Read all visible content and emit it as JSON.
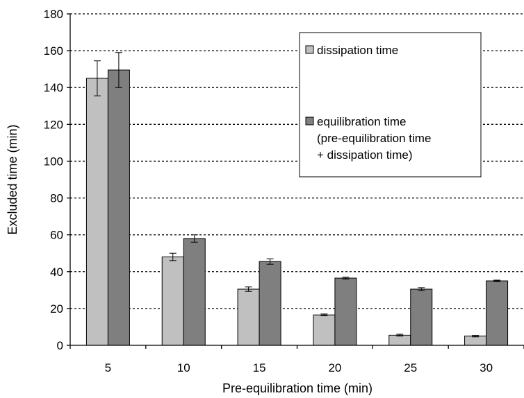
{
  "chart_data": {
    "type": "bar",
    "xlabel": "Pre-equilibration time (min)",
    "ylabel": "Excluded time (min)",
    "ylim": [
      0,
      180
    ],
    "yticks": [
      0,
      20,
      40,
      60,
      80,
      100,
      120,
      140,
      160,
      180
    ],
    "categories": [
      "5",
      "10",
      "15",
      "20",
      "25",
      "30"
    ],
    "grid": "horizontal dotted",
    "legend_position": "top-right",
    "series": [
      {
        "name": "dissipation time",
        "color": "#c0c0c0",
        "values": [
          145,
          48,
          30.5,
          16.5,
          5.5,
          5
        ],
        "errors": [
          9.5,
          2,
          1.2,
          0.5,
          0.5,
          0.4
        ]
      },
      {
        "name": "equilibration time",
        "name_lines": [
          "equilibration time",
          "(pre-equilibration time",
          "+ dissipation time)"
        ],
        "color": "#7f7f7f",
        "values": [
          149.5,
          58,
          45.5,
          36.5,
          30.5,
          35
        ],
        "errors": [
          9.5,
          2,
          1.5,
          0.5,
          0.8,
          0.4
        ]
      }
    ]
  }
}
